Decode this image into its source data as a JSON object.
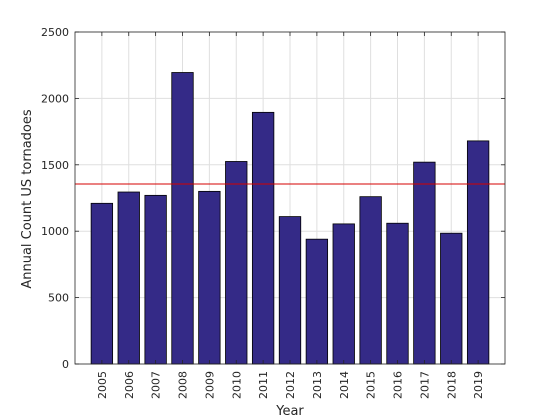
{
  "chart_data": {
    "type": "bar",
    "title": "",
    "xlabel": "Year",
    "ylabel": "Annual Count US tornadoes",
    "categories": [
      "2005",
      "2006",
      "2007",
      "2008",
      "2009",
      "2010",
      "2011",
      "2012",
      "2013",
      "2014",
      "2015",
      "2016",
      "2017",
      "2018",
      "2019"
    ],
    "values": [
      1210,
      1295,
      1270,
      2195,
      1300,
      1525,
      1895,
      1110,
      940,
      1055,
      1260,
      1060,
      1520,
      985,
      1680
    ],
    "ylim": [
      0,
      2500
    ],
    "yticks": [
      0,
      500,
      1000,
      1500,
      2000,
      2500
    ],
    "grid": true,
    "reference_line": {
      "value": 1355,
      "color": "#d40000"
    },
    "bar_color": "#342a87",
    "legend": "none"
  }
}
